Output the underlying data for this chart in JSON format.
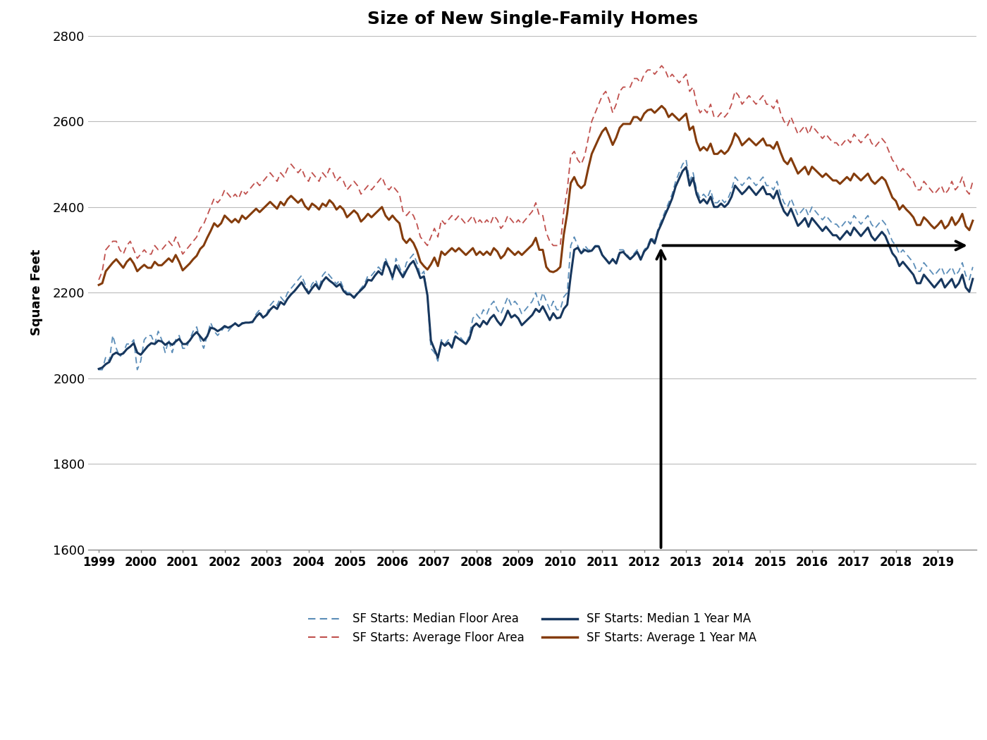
{
  "title": "Size of New Single-Family Homes",
  "ylabel": "Square Feet",
  "ylim": [
    1600,
    2800
  ],
  "yticks": [
    1600,
    1800,
    2000,
    2200,
    2400,
    2600,
    2800
  ],
  "xlim_start": 1998.75,
  "xlim_end": 2019.92,
  "xtick_labels": [
    "1999",
    "2000",
    "2001",
    "2002",
    "2003",
    "2004",
    "2005",
    "2006",
    "2007",
    "2008",
    "2009",
    "2010",
    "2011",
    "2012",
    "2013",
    "2014",
    "2015",
    "2016",
    "2017",
    "2018",
    "2019"
  ],
  "median_raw_color": "#5B8DB8",
  "average_raw_color": "#C0504D",
  "median_ma_color": "#17375E",
  "average_ma_color": "#843C0C",
  "legend_labels": [
    "SF Starts: Median Floor Area",
    "SF Starts: Average Floor Area",
    "SF Starts: Median 1 Year MA",
    "SF Starts: Average 1 Year MA"
  ],
  "median_floor_area": [
    2020,
    2020,
    2050,
    2040,
    2100,
    2070,
    2050,
    2060,
    2080,
    2080,
    2090,
    2020,
    2040,
    2090,
    2100,
    2100,
    2080,
    2110,
    2090,
    2060,
    2090,
    2060,
    2090,
    2100,
    2070,
    2070,
    2090,
    2110,
    2120,
    2090,
    2070,
    2100,
    2130,
    2110,
    2100,
    2110,
    2120,
    2110,
    2120,
    2130,
    2120,
    2130,
    2130,
    2130,
    2130,
    2150,
    2160,
    2140,
    2150,
    2170,
    2180,
    2170,
    2190,
    2180,
    2200,
    2210,
    2220,
    2230,
    2240,
    2220,
    2200,
    2220,
    2230,
    2210,
    2240,
    2250,
    2240,
    2230,
    2220,
    2230,
    2210,
    2200,
    2200,
    2190,
    2200,
    2210,
    2220,
    2240,
    2240,
    2250,
    2260,
    2250,
    2280,
    2260,
    2230,
    2280,
    2260,
    2240,
    2270,
    2280,
    2290,
    2270,
    2240,
    2250,
    2190,
    2070,
    2060,
    2040,
    2090,
    2080,
    2090,
    2070,
    2110,
    2100,
    2090,
    2080,
    2100,
    2140,
    2150,
    2140,
    2160,
    2150,
    2170,
    2180,
    2160,
    2150,
    2170,
    2190,
    2170,
    2180,
    2170,
    2150,
    2160,
    2170,
    2180,
    2200,
    2170,
    2200,
    2180,
    2160,
    2180,
    2160,
    2160,
    2190,
    2200,
    2310,
    2330,
    2310,
    2290,
    2310,
    2300,
    2300,
    2310,
    2310,
    2290,
    2280,
    2270,
    2280,
    2270,
    2300,
    2300,
    2290,
    2280,
    2290,
    2300,
    2280,
    2300,
    2310,
    2330,
    2320,
    2350,
    2370,
    2390,
    2410,
    2430,
    2460,
    2480,
    2500,
    2510,
    2460,
    2480,
    2440,
    2420,
    2430,
    2420,
    2440,
    2410,
    2410,
    2420,
    2410,
    2420,
    2440,
    2470,
    2460,
    2450,
    2460,
    2470,
    2460,
    2450,
    2460,
    2470,
    2450,
    2450,
    2440,
    2460,
    2430,
    2410,
    2400,
    2420,
    2400,
    2380,
    2390,
    2400,
    2380,
    2400,
    2390,
    2380,
    2370,
    2380,
    2370,
    2360,
    2360,
    2350,
    2360,
    2370,
    2360,
    2380,
    2370,
    2360,
    2370,
    2380,
    2360,
    2350,
    2360,
    2370,
    2360,
    2340,
    2320,
    2310,
    2290,
    2300,
    2290,
    2280,
    2270,
    2250,
    2250,
    2270,
    2260,
    2250,
    2240,
    2250,
    2260,
    2240,
    2250,
    2260,
    2240,
    2250,
    2270,
    2240,
    2230,
    2260
  ],
  "average_floor_area": [
    2230,
    2250,
    2300,
    2310,
    2320,
    2320,
    2300,
    2290,
    2310,
    2320,
    2300,
    2280,
    2290,
    2300,
    2290,
    2290,
    2310,
    2300,
    2300,
    2310,
    2320,
    2310,
    2330,
    2310,
    2290,
    2300,
    2310,
    2320,
    2330,
    2350,
    2360,
    2380,
    2400,
    2420,
    2410,
    2420,
    2440,
    2430,
    2420,
    2430,
    2420,
    2440,
    2430,
    2440,
    2450,
    2460,
    2450,
    2460,
    2470,
    2480,
    2470,
    2460,
    2480,
    2470,
    2490,
    2500,
    2490,
    2480,
    2490,
    2470,
    2460,
    2480,
    2470,
    2460,
    2480,
    2470,
    2490,
    2480,
    2460,
    2470,
    2460,
    2440,
    2450,
    2460,
    2450,
    2430,
    2440,
    2450,
    2440,
    2450,
    2460,
    2470,
    2450,
    2440,
    2450,
    2440,
    2430,
    2390,
    2380,
    2390,
    2380,
    2360,
    2330,
    2320,
    2310,
    2330,
    2350,
    2330,
    2370,
    2360,
    2370,
    2380,
    2370,
    2380,
    2370,
    2360,
    2370,
    2380,
    2360,
    2370,
    2360,
    2370,
    2360,
    2380,
    2370,
    2350,
    2360,
    2380,
    2370,
    2360,
    2370,
    2360,
    2370,
    2380,
    2390,
    2410,
    2380,
    2380,
    2340,
    2320,
    2310,
    2310,
    2310,
    2390,
    2440,
    2520,
    2530,
    2510,
    2500,
    2520,
    2560,
    2600,
    2620,
    2640,
    2660,
    2670,
    2650,
    2620,
    2640,
    2670,
    2680,
    2680,
    2680,
    2700,
    2700,
    2690,
    2710,
    2720,
    2720,
    2710,
    2720,
    2730,
    2720,
    2700,
    2710,
    2700,
    2690,
    2700,
    2710,
    2670,
    2680,
    2640,
    2620,
    2630,
    2620,
    2640,
    2610,
    2610,
    2620,
    2610,
    2620,
    2640,
    2670,
    2660,
    2640,
    2650,
    2660,
    2650,
    2640,
    2650,
    2660,
    2640,
    2640,
    2630,
    2650,
    2620,
    2600,
    2590,
    2610,
    2590,
    2570,
    2580,
    2590,
    2570,
    2590,
    2580,
    2570,
    2560,
    2570,
    2560,
    2550,
    2550,
    2540,
    2550,
    2560,
    2550,
    2570,
    2560,
    2550,
    2560,
    2570,
    2550,
    2540,
    2550,
    2560,
    2550,
    2530,
    2510,
    2500,
    2480,
    2490,
    2480,
    2470,
    2460,
    2440,
    2440,
    2460,
    2450,
    2440,
    2430,
    2440,
    2450,
    2430,
    2440,
    2460,
    2440,
    2450,
    2470,
    2440,
    2430,
    2460
  ],
  "median_1yr_ma": [
    2022,
    2025,
    2033,
    2038,
    2055,
    2060,
    2055,
    2058,
    2068,
    2074,
    2082,
    2060,
    2055,
    2065,
    2075,
    2082,
    2080,
    2088,
    2086,
    2078,
    2084,
    2078,
    2086,
    2092,
    2080,
    2080,
    2088,
    2100,
    2108,
    2098,
    2088,
    2098,
    2118,
    2116,
    2110,
    2115,
    2122,
    2118,
    2122,
    2128,
    2122,
    2128,
    2130,
    2130,
    2132,
    2144,
    2152,
    2142,
    2148,
    2160,
    2168,
    2162,
    2178,
    2172,
    2186,
    2196,
    2204,
    2214,
    2224,
    2210,
    2198,
    2210,
    2220,
    2208,
    2226,
    2236,
    2228,
    2222,
    2214,
    2220,
    2204,
    2196,
    2196,
    2188,
    2198,
    2206,
    2214,
    2230,
    2228,
    2240,
    2250,
    2242,
    2272,
    2258,
    2236,
    2264,
    2250,
    2236,
    2252,
    2266,
    2274,
    2256,
    2234,
    2238,
    2194,
    2088,
    2068,
    2048,
    2084,
    2076,
    2083,
    2072,
    2098,
    2092,
    2086,
    2080,
    2092,
    2120,
    2128,
    2120,
    2134,
    2126,
    2140,
    2148,
    2134,
    2124,
    2138,
    2158,
    2142,
    2148,
    2140,
    2124,
    2132,
    2140,
    2148,
    2162,
    2155,
    2168,
    2152,
    2136,
    2152,
    2140,
    2142,
    2162,
    2172,
    2240,
    2300,
    2305,
    2292,
    2300,
    2296,
    2298,
    2308,
    2308,
    2288,
    2278,
    2268,
    2278,
    2268,
    2293,
    2295,
    2286,
    2278,
    2286,
    2295,
    2277,
    2296,
    2305,
    2325,
    2315,
    2344,
    2362,
    2382,
    2400,
    2420,
    2448,
    2466,
    2484,
    2493,
    2450,
    2468,
    2430,
    2410,
    2418,
    2408,
    2424,
    2400,
    2400,
    2408,
    2400,
    2408,
    2424,
    2450,
    2440,
    2430,
    2438,
    2448,
    2438,
    2428,
    2438,
    2448,
    2430,
    2430,
    2420,
    2438,
    2410,
    2390,
    2380,
    2396,
    2376,
    2356,
    2364,
    2374,
    2354,
    2374,
    2364,
    2354,
    2344,
    2354,
    2344,
    2334,
    2334,
    2324,
    2334,
    2344,
    2334,
    2352,
    2342,
    2332,
    2342,
    2352,
    2332,
    2322,
    2332,
    2342,
    2332,
    2312,
    2292,
    2282,
    2262,
    2272,
    2262,
    2252,
    2242,
    2222,
    2222,
    2242,
    2232,
    2222,
    2212,
    2222,
    2232,
    2212,
    2222,
    2232,
    2212,
    2222,
    2242,
    2212,
    2202,
    2232
  ],
  "average_1yr_ma": [
    2218,
    2222,
    2250,
    2260,
    2270,
    2278,
    2268,
    2258,
    2272,
    2280,
    2268,
    2250,
    2258,
    2265,
    2258,
    2258,
    2272,
    2264,
    2264,
    2272,
    2280,
    2272,
    2288,
    2272,
    2252,
    2260,
    2268,
    2278,
    2286,
    2302,
    2310,
    2328,
    2344,
    2362,
    2354,
    2362,
    2380,
    2372,
    2364,
    2372,
    2364,
    2380,
    2372,
    2380,
    2388,
    2396,
    2388,
    2396,
    2404,
    2412,
    2404,
    2396,
    2412,
    2404,
    2418,
    2426,
    2418,
    2410,
    2418,
    2402,
    2394,
    2408,
    2402,
    2394,
    2408,
    2402,
    2416,
    2408,
    2394,
    2402,
    2394,
    2376,
    2384,
    2392,
    2384,
    2366,
    2374,
    2384,
    2376,
    2384,
    2392,
    2400,
    2380,
    2370,
    2380,
    2370,
    2362,
    2326,
    2316,
    2326,
    2316,
    2298,
    2272,
    2262,
    2254,
    2266,
    2282,
    2262,
    2296,
    2288,
    2296,
    2304,
    2296,
    2304,
    2296,
    2288,
    2296,
    2304,
    2288,
    2296,
    2288,
    2296,
    2288,
    2304,
    2296,
    2280,
    2288,
    2304,
    2296,
    2288,
    2296,
    2288,
    2296,
    2304,
    2312,
    2328,
    2300,
    2300,
    2260,
    2250,
    2248,
    2252,
    2260,
    2335,
    2386,
    2456,
    2470,
    2452,
    2444,
    2452,
    2490,
    2524,
    2542,
    2560,
    2576,
    2585,
    2566,
    2545,
    2562,
    2585,
    2594,
    2594,
    2594,
    2610,
    2610,
    2602,
    2618,
    2626,
    2628,
    2620,
    2628,
    2636,
    2628,
    2610,
    2618,
    2610,
    2602,
    2610,
    2618,
    2580,
    2588,
    2552,
    2532,
    2540,
    2532,
    2548,
    2524,
    2524,
    2532,
    2524,
    2532,
    2548,
    2572,
    2562,
    2544,
    2552,
    2560,
    2552,
    2544,
    2552,
    2560,
    2544,
    2544,
    2536,
    2552,
    2528,
    2508,
    2500,
    2514,
    2496,
    2478,
    2486,
    2494,
    2476,
    2494,
    2486,
    2478,
    2470,
    2478,
    2470,
    2462,
    2462,
    2454,
    2462,
    2470,
    2462,
    2478,
    2470,
    2462,
    2470,
    2478,
    2462,
    2454,
    2462,
    2470,
    2462,
    2442,
    2422,
    2414,
    2394,
    2404,
    2394,
    2386,
    2376,
    2358,
    2358,
    2376,
    2368,
    2358,
    2350,
    2358,
    2368,
    2350,
    2358,
    2376,
    2358,
    2368,
    2384,
    2355,
    2346,
    2368
  ]
}
